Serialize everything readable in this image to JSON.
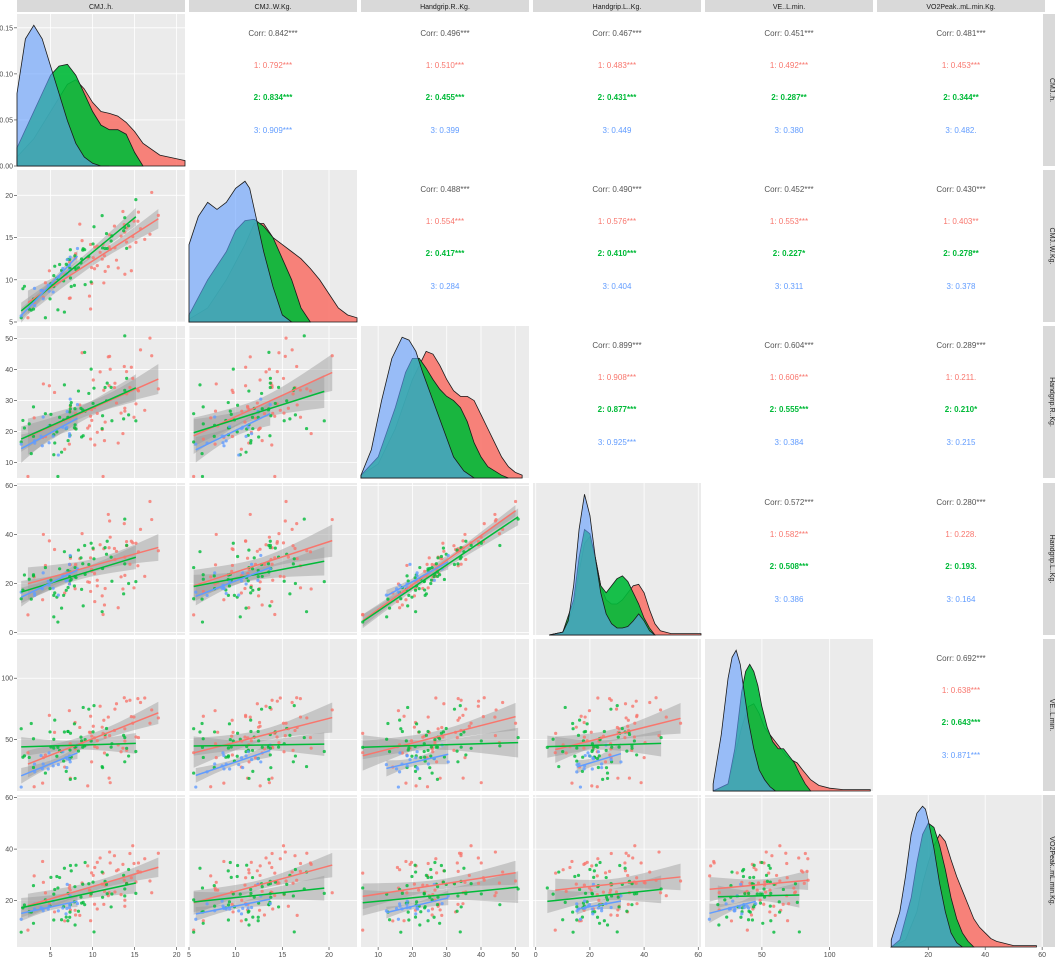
{
  "chart_data": {
    "type": "scatter",
    "title": "",
    "variables": [
      "CMJ..h.",
      "CMJ..W.Kg.",
      "Handgrip.R..Kg.",
      "Handgrip.L..Kg.",
      "VE..L.min.",
      "VO2Peak..mL.min.Kg."
    ],
    "row_strip_labels": [
      "CMJ..h.",
      "CMJ..W.Kg.",
      "Handgrip.R..Kg.",
      "Handgrip.L..Kg.",
      "VE..L.min.",
      "VO2Peak..mL.min.Kg."
    ],
    "groups": [
      {
        "name": "1",
        "color": "#f8766d"
      },
      {
        "name": "2",
        "color": "#00ba38"
      },
      {
        "name": "3",
        "color": "#619cff"
      }
    ],
    "overall_color": "#555555",
    "axes": {
      "CMJ..h.": {
        "range": [
          1,
          21
        ],
        "ticks": [
          5,
          10,
          15,
          20
        ],
        "diag_ticks": [
          0.0,
          0.05,
          0.1,
          0.15
        ],
        "diag_tick_labels": [
          "0.00",
          "0.05",
          "0.10",
          "0.15"
        ]
      },
      "CMJ..W.Kg.": {
        "range": [
          5,
          23
        ],
        "ticks": [
          5,
          10,
          15,
          20
        ]
      },
      "Handgrip.R..Kg.": {
        "range": [
          5,
          54
        ],
        "ticks": [
          10,
          20,
          30,
          40,
          50
        ]
      },
      "Handgrip.L..Kg.": {
        "range": [
          -1,
          61
        ],
        "ticks": [
          0,
          20,
          40,
          60
        ]
      },
      "VE..L.min.": {
        "range": [
          8,
          132
        ],
        "ticks": [
          50,
          100
        ]
      },
      "VO2Peak..mL.min.Kg.": {
        "range": [
          2,
          61
        ],
        "ticks": [
          20,
          40,
          60
        ]
      }
    },
    "correlations": [
      {
        "i": 0,
        "j": 1,
        "corr": "Corr: 0.842***",
        "g1": "1: 0.792***",
        "g2": "2: 0.834***",
        "g3": "3: 0.909***"
      },
      {
        "i": 0,
        "j": 2,
        "corr": "Corr: 0.496***",
        "g1": "1: 0.510***",
        "g2": "2: 0.455***",
        "g3": "3: 0.399"
      },
      {
        "i": 0,
        "j": 3,
        "corr": "Corr: 0.467***",
        "g1": "1: 0.483***",
        "g2": "2: 0.431***",
        "g3": "3: 0.449"
      },
      {
        "i": 0,
        "j": 4,
        "corr": "Corr: 0.451***",
        "g1": "1: 0.492***",
        "g2": "2: 0.287**",
        "g3": "3: 0.380"
      },
      {
        "i": 0,
        "j": 5,
        "corr": "Corr: 0.481***",
        "g1": "1: 0.453***",
        "g2": "2: 0.344**",
        "g3": "3: 0.482."
      },
      {
        "i": 1,
        "j": 2,
        "corr": "Corr: 0.488***",
        "g1": "1: 0.554***",
        "g2": "2: 0.417***",
        "g3": "3: 0.284"
      },
      {
        "i": 1,
        "j": 3,
        "corr": "Corr: 0.490***",
        "g1": "1: 0.576***",
        "g2": "2: 0.410***",
        "g3": "3: 0.404"
      },
      {
        "i": 1,
        "j": 4,
        "corr": "Corr: 0.452***",
        "g1": "1: 0.553***",
        "g2": "2: 0.227*",
        "g3": "3: 0.311"
      },
      {
        "i": 1,
        "j": 5,
        "corr": "Corr: 0.430***",
        "g1": "1: 0.403**",
        "g2": "2: 0.278**",
        "g3": "3: 0.378"
      },
      {
        "i": 2,
        "j": 3,
        "corr": "Corr: 0.899***",
        "g1": "1: 0.908***",
        "g2": "2: 0.877***",
        "g3": "3: 0.925***"
      },
      {
        "i": 2,
        "j": 4,
        "corr": "Corr: 0.604***",
        "g1": "1: 0.606***",
        "g2": "2: 0.555***",
        "g3": "3: 0.384"
      },
      {
        "i": 2,
        "j": 5,
        "corr": "Corr: 0.289***",
        "g1": "1: 0.211.",
        "g2": "2: 0.210*",
        "g3": "3: 0.215"
      },
      {
        "i": 3,
        "j": 4,
        "corr": "Corr: 0.572***",
        "g1": "1: 0.582***",
        "g2": "2: 0.508***",
        "g3": "3: 0.386"
      },
      {
        "i": 3,
        "j": 5,
        "corr": "Corr: 0.280***",
        "g1": "1: 0.228.",
        "g2": "2: 0.193.",
        "g3": "3: 0.164"
      },
      {
        "i": 4,
        "j": 5,
        "corr": "Corr: 0.692***",
        "g1": "1: 0.638***",
        "g2": "2: 0.643***",
        "g3": "3: 0.871***"
      }
    ],
    "densities": [
      {
        "var": 0,
        "series": [
          {
            "group": "3",
            "x": [
              1,
              2,
              3,
              4,
              5,
              6,
              7,
              8,
              9,
              10,
              11,
              12
            ],
            "y": [
              0.08,
              0.14,
              0.155,
              0.14,
              0.11,
              0.08,
              0.05,
              0.025,
              0.01,
              0.003,
              0.0,
              0.0
            ]
          },
          {
            "group": "2",
            "x": [
              1,
              2,
              3,
              4,
              5,
              6,
              7,
              8,
              9,
              10,
              11,
              12,
              13,
              14,
              15,
              16
            ],
            "y": [
              0.02,
              0.04,
              0.06,
              0.08,
              0.1,
              0.11,
              0.112,
              0.1,
              0.08,
              0.06,
              0.045,
              0.04,
              0.04,
              0.035,
              0.015,
              0.0
            ]
          },
          {
            "group": "1",
            "x": [
              1,
              3,
              5,
              7,
              8,
              9,
              10,
              11,
              12,
              13,
              14,
              15,
              16,
              18,
              20,
              21
            ],
            "y": [
              0.01,
              0.03,
              0.06,
              0.09,
              0.095,
              0.085,
              0.07,
              0.06,
              0.058,
              0.055,
              0.048,
              0.038,
              0.025,
              0.012,
              0.008,
              0.006
            ]
          }
        ]
      },
      {
        "var": 1,
        "series": [
          {
            "group": "3",
            "x": [
              5,
              6,
              7,
              8,
              9,
              10,
              11,
              11.5,
              12,
              13,
              14,
              15,
              16
            ],
            "y": [
              0.55,
              0.75,
              0.85,
              0.8,
              0.85,
              0.95,
              1.0,
              0.95,
              0.8,
              0.5,
              0.25,
              0.05,
              0.0
            ]
          },
          {
            "group": "2",
            "x": [
              5,
              7,
              9,
              10,
              11,
              12,
              13,
              14,
              15,
              16,
              17,
              18
            ],
            "y": [
              0.05,
              0.3,
              0.5,
              0.65,
              0.72,
              0.73,
              0.68,
              0.6,
              0.45,
              0.3,
              0.1,
              0.0
            ]
          },
          {
            "group": "1",
            "x": [
              5,
              7,
              9,
              11,
              12,
              13,
              14,
              15,
              16,
              17,
              18,
              19,
              20,
              21,
              22,
              23
            ],
            "y": [
              0.02,
              0.1,
              0.3,
              0.55,
              0.7,
              0.7,
              0.6,
              0.55,
              0.5,
              0.45,
              0.38,
              0.3,
              0.2,
              0.1,
              0.05,
              0.03
            ]
          }
        ]
      },
      {
        "var": 2,
        "series": [
          {
            "group": "3",
            "x": [
              5,
              8,
              11,
              14,
              17,
              19,
              21,
              23,
              26,
              29,
              32,
              35,
              38
            ],
            "y": [
              0.02,
              0.2,
              0.55,
              0.85,
              1.0,
              0.98,
              0.9,
              0.75,
              0.55,
              0.35,
              0.15,
              0.05,
              0.0
            ]
          },
          {
            "group": "2",
            "x": [
              5,
              10,
              15,
              18,
              20,
              22,
              24,
              26,
              28,
              30,
              32,
              34,
              36,
              38,
              40,
              42,
              44,
              46,
              48
            ],
            "y": [
              0.02,
              0.15,
              0.5,
              0.75,
              0.85,
              0.85,
              0.78,
              0.7,
              0.63,
              0.58,
              0.55,
              0.5,
              0.4,
              0.25,
              0.15,
              0.08,
              0.05,
              0.02,
              0.0
            ]
          },
          {
            "group": "1",
            "x": [
              5,
              10,
              15,
              20,
              22,
              24,
              26,
              28,
              30,
              32,
              34,
              36,
              38,
              40,
              42,
              44,
              46,
              48,
              50,
              52
            ],
            "y": [
              0.02,
              0.1,
              0.35,
              0.7,
              0.8,
              0.9,
              0.88,
              0.8,
              0.7,
              0.62,
              0.58,
              0.58,
              0.55,
              0.45,
              0.35,
              0.25,
              0.15,
              0.08,
              0.04,
              0.02
            ]
          }
        ]
      },
      {
        "var": 3,
        "series": [
          {
            "group": "3",
            "x": [
              5,
              10,
              12,
              14,
              16,
              18,
              20,
              22,
              24,
              26,
              28,
              30,
              32,
              34,
              36,
              38,
              40,
              42,
              44
            ],
            "y": [
              0.0,
              0.02,
              0.1,
              0.35,
              0.75,
              1.0,
              0.85,
              0.55,
              0.3,
              0.15,
              0.08,
              0.05,
              0.05,
              0.06,
              0.1,
              0.15,
              0.1,
              0.03,
              0.0
            ]
          },
          {
            "group": "2",
            "x": [
              5,
              10,
              14,
              16,
              18,
              20,
              22,
              24,
              26,
              28,
              30,
              32,
              34,
              36,
              38,
              40,
              42,
              44
            ],
            "y": [
              0.0,
              0.02,
              0.25,
              0.55,
              0.75,
              0.72,
              0.55,
              0.35,
              0.3,
              0.35,
              0.4,
              0.42,
              0.38,
              0.3,
              0.22,
              0.12,
              0.05,
              0.0
            ]
          },
          {
            "group": "1",
            "x": [
              5,
              10,
              14,
              16,
              18,
              20,
              22,
              24,
              26,
              28,
              30,
              32,
              34,
              36,
              38,
              40,
              42,
              44,
              46,
              50,
              55,
              61
            ],
            "y": [
              0.0,
              0.02,
              0.2,
              0.45,
              0.65,
              0.7,
              0.55,
              0.35,
              0.25,
              0.22,
              0.22,
              0.25,
              0.3,
              0.35,
              0.36,
              0.3,
              0.18,
              0.08,
              0.03,
              0.01,
              0.01,
              0.01
            ]
          }
        ]
      },
      {
        "var": 4,
        "series": [
          {
            "group": "3",
            "x": [
              14,
              20,
              25,
              28,
              31,
              34,
              37,
              40,
              44,
              48,
              52,
              56,
              60
            ],
            "y": [
              0.05,
              0.4,
              0.8,
              0.95,
              1.0,
              0.9,
              0.7,
              0.5,
              0.3,
              0.15,
              0.08,
              0.03,
              0.0
            ]
          },
          {
            "group": "2",
            "x": [
              14,
              25,
              30,
              35,
              38,
              41,
              44,
              47,
              50,
              54,
              58,
              62,
              66,
              70,
              74,
              78,
              82,
              86
            ],
            "y": [
              0.0,
              0.05,
              0.3,
              0.7,
              0.85,
              0.9,
              0.85,
              0.75,
              0.6,
              0.45,
              0.35,
              0.3,
              0.3,
              0.25,
              0.2,
              0.12,
              0.05,
              0.0
            ]
          },
          {
            "group": "1",
            "x": [
              14,
              25,
              30,
              35,
              40,
              44,
              48,
              52,
              56,
              60,
              64,
              68,
              72,
              76,
              80,
              86,
              92,
              100,
              110,
              120,
              130
            ],
            "y": [
              0.0,
              0.05,
              0.25,
              0.45,
              0.6,
              0.62,
              0.55,
              0.45,
              0.4,
              0.35,
              0.3,
              0.25,
              0.22,
              0.2,
              0.15,
              0.08,
              0.04,
              0.02,
              0.01,
              0.01,
              0.01
            ]
          }
        ]
      },
      {
        "var": 5,
        "series": [
          {
            "group": "3",
            "x": [
              7,
              10,
              12,
              14,
              16,
              18,
              19,
              20,
              22,
              24,
              26,
              28,
              30,
              32
            ],
            "y": [
              0.05,
              0.25,
              0.5,
              0.8,
              0.95,
              1.0,
              0.98,
              0.9,
              0.7,
              0.45,
              0.25,
              0.1,
              0.03,
              0.0
            ]
          },
          {
            "group": "2",
            "x": [
              7,
              10,
              14,
              16,
              18,
              20,
              22,
              24,
              26,
              28,
              30,
              32,
              34,
              36
            ],
            "y": [
              0.0,
              0.05,
              0.35,
              0.6,
              0.8,
              0.88,
              0.85,
              0.72,
              0.55,
              0.35,
              0.2,
              0.1,
              0.04,
              0.0
            ]
          },
          {
            "group": "1",
            "x": [
              7,
              12,
              16,
              18,
              20,
              22,
              24,
              26,
              28,
              30,
              32,
              34,
              36,
              38,
              40,
              42,
              44,
              46,
              50,
              54,
              58
            ],
            "y": [
              0.0,
              0.05,
              0.25,
              0.45,
              0.6,
              0.72,
              0.8,
              0.75,
              0.62,
              0.5,
              0.4,
              0.3,
              0.2,
              0.14,
              0.1,
              0.06,
              0.04,
              0.03,
              0.01,
              0.01,
              0.01
            ]
          }
        ]
      }
    ]
  }
}
